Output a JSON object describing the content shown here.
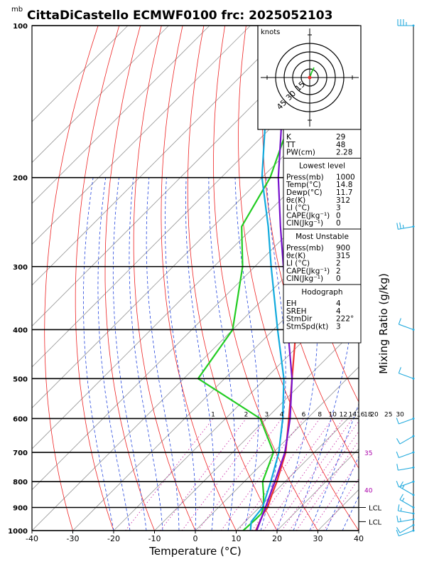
{
  "header": {
    "unit_mb": "mb",
    "title": "CittaDiCastello ECMWF0100  frc: 2025052103"
  },
  "chart_data": {
    "type": "line",
    "xlabel": "Temperature (°C)",
    "ylabel": "",
    "right_axis_label": "Mixing Ratio (g/kg)",
    "xlim": [
      -40,
      40
    ],
    "ylim": [
      1000,
      100
    ],
    "x_ticks": [
      "-40",
      "-30",
      "-20",
      "-10",
      "0",
      "10",
      "20",
      "30",
      "40"
    ],
    "y_ticks": [
      {
        "p": 100,
        "label": "100"
      },
      {
        "p": 200,
        "label": "200"
      },
      {
        "p": 300,
        "label": "300"
      },
      {
        "p": 400,
        "label": "400"
      },
      {
        "p": 500,
        "label": "500"
      },
      {
        "p": 600,
        "label": "600"
      },
      {
        "p": 700,
        "label": "700"
      },
      {
        "p": 800,
        "label": "800"
      },
      {
        "p": 900,
        "label": "900"
      },
      {
        "p": 1000,
        "label": "1000"
      }
    ],
    "mixing_ratio_labels": [
      "1",
      "2",
      "3",
      "4",
      "6",
      "8",
      "10",
      "12",
      "14",
      "16",
      "18",
      "20",
      "25",
      "30"
    ],
    "mixing_ratio_values": [
      1,
      2,
      3,
      4,
      6,
      8,
      10,
      12,
      14,
      16,
      18,
      20,
      25,
      30
    ],
    "theta_e_labels": [
      {
        "value": "35",
        "p": 700
      },
      {
        "value": "40",
        "p": 830
      }
    ],
    "lcl_labels": [
      {
        "p": 900,
        "label": "LCL"
      },
      {
        "p": 960,
        "label": "LCL"
      }
    ],
    "series": [
      {
        "name": "",
        "color": "#ee3333",
        "role": "temperature",
        "points": [
          [
            1000,
            14.8
          ],
          [
            925,
            12.5
          ],
          [
            900,
            12.0
          ],
          [
            850,
            10.0
          ],
          [
            800,
            8.0
          ],
          [
            700,
            3.0
          ],
          [
            600,
            -4.5
          ],
          [
            500,
            -13.5
          ],
          [
            400,
            -24.5
          ],
          [
            300,
            -38.5
          ],
          [
            250,
            -48.0
          ],
          [
            200,
            -50.0
          ],
          [
            150,
            -52.0
          ],
          [
            100,
            -55.0
          ]
        ]
      },
      {
        "name": "",
        "color": "#22cc22",
        "role": "dewpoint",
        "points": [
          [
            1000,
            11.7
          ],
          [
            950,
            12.0
          ],
          [
            925,
            12.0
          ],
          [
            900,
            11.0
          ],
          [
            850,
            8.0
          ],
          [
            800,
            4.5
          ],
          [
            700,
            0.0
          ],
          [
            600,
            -11.5
          ],
          [
            500,
            -36.5
          ],
          [
            400,
            -40.0
          ],
          [
            300,
            -53.0
          ],
          [
            250,
            -63.0
          ],
          [
            200,
            -68.0
          ],
          [
            150,
            -78.0
          ],
          [
            100,
            -88.0
          ]
        ]
      },
      {
        "name": "",
        "color": "#7711cc",
        "role": "parcel_virtual",
        "points": [
          [
            1000,
            15.0
          ],
          [
            900,
            11.5
          ],
          [
            800,
            7.5
          ],
          [
            700,
            2.8
          ],
          [
            600,
            -4.2
          ],
          [
            500,
            -13.5
          ],
          [
            400,
            -26.5
          ],
          [
            300,
            -43.0
          ],
          [
            250,
            -53.5
          ],
          [
            200,
            -66.0
          ],
          [
            150,
            -80.5
          ],
          [
            100,
            -101.0
          ]
        ]
      },
      {
        "name": "",
        "color": "#11aadd",
        "role": "parcel",
        "points": [
          [
            1000,
            13.5
          ],
          [
            960,
            11.5
          ],
          [
            900,
            10.8
          ],
          [
            800,
            6.5
          ],
          [
            700,
            1.3
          ],
          [
            600,
            -6.0
          ],
          [
            500,
            -15.5
          ],
          [
            400,
            -29.0
          ],
          [
            300,
            -46.0
          ],
          [
            250,
            -56.5
          ],
          [
            200,
            -70.0
          ],
          [
            150,
            -84.5
          ],
          [
            100,
            -103.0
          ]
        ]
      }
    ],
    "grid": true
  },
  "hodograph": {
    "units": "knots",
    "ring_labels": [
      "15",
      "30",
      "45"
    ]
  },
  "indices": {
    "rows": [
      {
        "label": "K",
        "value": "29"
      },
      {
        "label": "TT",
        "value": "48"
      },
      {
        "label": "PW(cm)",
        "value": "2.28"
      }
    ],
    "lowest_title": "Lowest level",
    "lowest": [
      {
        "label": "Press(mb)",
        "value": "1000"
      },
      {
        "label": "Temp(°C)",
        "value": "14.8"
      },
      {
        "label": "Dewp(°C)",
        "value": "11.7"
      },
      {
        "label": "θε(K)",
        "value": "312"
      },
      {
        "label": "LI (°C)",
        "value": "3"
      },
      {
        "label": "CAPE(Jkg⁻¹)",
        "value": "0"
      },
      {
        "label": "CIN(Jkg⁻¹)",
        "value": "0"
      }
    ],
    "mu_title": "Most Unstable",
    "mu": [
      {
        "label": "Press(mb)",
        "value": "900"
      },
      {
        "label": "θε(K)",
        "value": "315"
      },
      {
        "label": "LI (°C)",
        "value": "2"
      },
      {
        "label": "CAPE(Jkg⁻¹)",
        "value": "2"
      },
      {
        "label": "CIN(Jkg⁻¹)",
        "value": "0"
      }
    ],
    "hodo_title": "Hodograph",
    "hodo": [
      {
        "label": "EH",
        "value": "4"
      },
      {
        "label": "SREH",
        "value": "4"
      },
      {
        "label": "StmDir",
        "value": "222°"
      },
      {
        "label": "StmSpd(kt)",
        "value": "3"
      }
    ]
  },
  "wind_profile": [
    {
      "p": 1000,
      "dir": 250,
      "spd": 10
    },
    {
      "p": 975,
      "dir": 240,
      "spd": 10
    },
    {
      "p": 950,
      "dir": 260,
      "spd": 5
    },
    {
      "p": 925,
      "dir": 280,
      "spd": 5
    },
    {
      "p": 900,
      "dir": 300,
      "spd": 5
    },
    {
      "p": 850,
      "dir": 300,
      "spd": 5
    },
    {
      "p": 800,
      "dir": 250,
      "spd": 10
    },
    {
      "p": 750,
      "dir": 260,
      "spd": 10
    },
    {
      "p": 700,
      "dir": 250,
      "spd": 10
    },
    {
      "p": 650,
      "dir": 240,
      "spd": 10
    },
    {
      "p": 600,
      "dir": 250,
      "spd": 10
    },
    {
      "p": 500,
      "dir": 290,
      "spd": 10
    },
    {
      "p": 400,
      "dir": 290,
      "spd": 10
    },
    {
      "p": 250,
      "dir": 260,
      "spd": 15
    },
    {
      "p": 100,
      "dir": 270,
      "spd": 25
    }
  ],
  "colors": {
    "isotherm": "#999999",
    "dry_adiabat": "#ee2222",
    "moist_adiabat": "#2244dd",
    "mixing_ratio": "#cc33aa",
    "mixing_ratio_label": "#aa00aa",
    "wind": "#22aadd"
  }
}
